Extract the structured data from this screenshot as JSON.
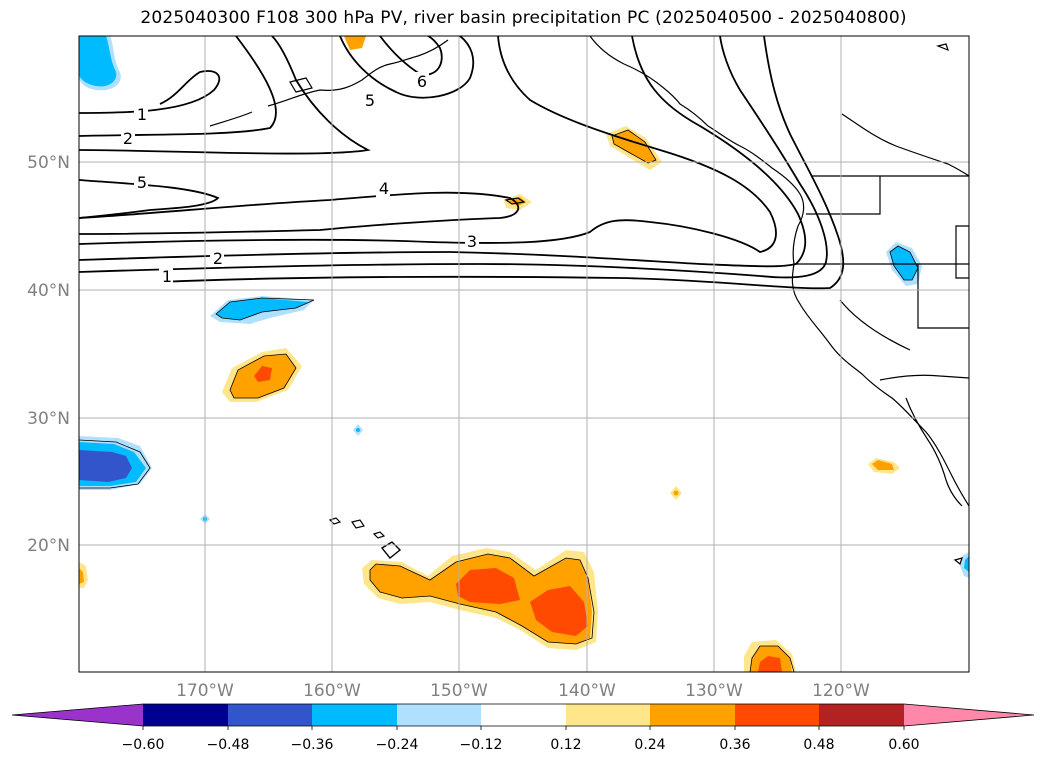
{
  "title": "2025040300 F108 300 hPa PV, river basin precipitation PC (2025040500 - 2025040800)",
  "lat_labels": [
    "50°N",
    "40°N",
    "30°N",
    "20°N"
  ],
  "lon_labels": [
    "170°W",
    "160°W",
    "150°W",
    "140°W",
    "130°W",
    "120°W"
  ],
  "contour_labels": [
    "1",
    "2",
    "5",
    "4",
    "3",
    "2",
    "1",
    "5",
    "6"
  ],
  "colorbar": {
    "ticks": [
      "−0.60",
      "−0.48",
      "−0.36",
      "−0.24",
      "−0.12",
      "0.12",
      "0.24",
      "0.36",
      "0.48",
      "0.60"
    ],
    "colors": [
      "#9933cc",
      "#000090",
      "#3355cc",
      "#00bbff",
      "#b0e0ff",
      "#ffffff",
      "#ffe68a",
      "#ffa200",
      "#ff4a00",
      "#b22222",
      "#ff88aa"
    ]
  },
  "colors": {
    "orange": "#ffa200",
    "red_orange": "#ff4a00",
    "light_yellow": "#ffe68a",
    "cyan": "#00bbff",
    "light_blue": "#b0e0ff",
    "royal_blue": "#3355cc",
    "grid": "#b0b0b0"
  }
}
